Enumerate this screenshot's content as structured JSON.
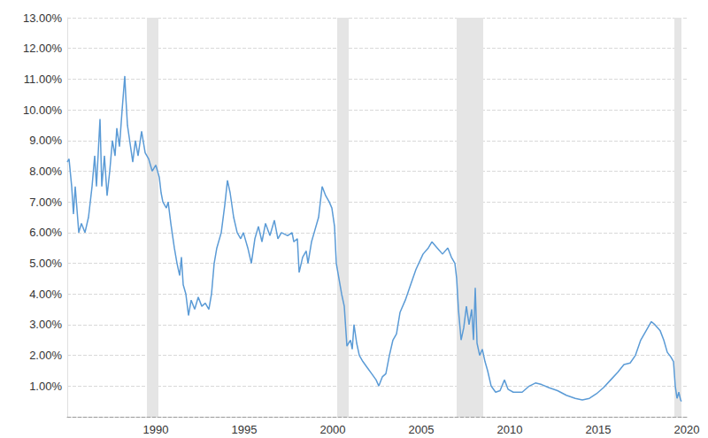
{
  "chart_data": {
    "type": "line",
    "color": "#5b9bd6",
    "grid": true,
    "xlim": [
      1985,
      2020
    ],
    "xticks": [
      1990,
      1995,
      2000,
      2005,
      2010,
      2015,
      2020
    ],
    "ylim": [
      0,
      13
    ],
    "yticks": [
      {
        "value": 1,
        "label": "1.00%"
      },
      {
        "value": 2,
        "label": "2.00%"
      },
      {
        "value": 3,
        "label": "3.00%"
      },
      {
        "value": 4,
        "label": "4.00%"
      },
      {
        "value": 5,
        "label": "5.00%"
      },
      {
        "value": 6,
        "label": "6.00%"
      },
      {
        "value": 7,
        "label": "7.00%"
      },
      {
        "value": 8,
        "label": "8.00%"
      },
      {
        "value": 9,
        "label": "9.00%"
      },
      {
        "value": 10,
        "label": "10.00%"
      },
      {
        "value": 11,
        "label": "11.00%"
      },
      {
        "value": 12,
        "label": "12.00%"
      },
      {
        "value": 13,
        "label": "13.00%"
      }
    ],
    "shaded_ranges": [
      [
        1989.5,
        1990.15
      ],
      [
        2000.25,
        2000.9
      ],
      [
        2007.0,
        2008.5
      ],
      [
        2019.3,
        2019.7
      ]
    ],
    "x": [
      1985.0,
      1985.1,
      1985.25,
      1985.35,
      1985.45,
      1985.65,
      1985.8,
      1986.0,
      1986.2,
      1986.4,
      1986.55,
      1986.65,
      1986.85,
      1986.95,
      1987.1,
      1987.25,
      1987.4,
      1987.55,
      1987.7,
      1987.8,
      1987.95,
      1988.1,
      1988.25,
      1988.3,
      1988.4,
      1988.55,
      1988.7,
      1988.85,
      1989.0,
      1989.2,
      1989.4,
      1989.6,
      1989.8,
      1990.0,
      1990.2,
      1990.3,
      1990.4,
      1990.6,
      1990.7,
      1990.85,
      1991.05,
      1991.2,
      1991.35,
      1991.45,
      1991.55,
      1991.7,
      1991.85,
      1992.0,
      1992.2,
      1992.4,
      1992.6,
      1992.8,
      1993.0,
      1993.15,
      1993.3,
      1993.45,
      1993.7,
      1993.9,
      1994.05,
      1994.2,
      1994.4,
      1994.6,
      1994.8,
      1994.95,
      1995.2,
      1995.4,
      1995.6,
      1995.8,
      1996.0,
      1996.2,
      1996.45,
      1996.7,
      1996.9,
      1997.1,
      1997.45,
      1997.7,
      1997.8,
      1998.0,
      1998.1,
      1998.3,
      1998.5,
      1998.6,
      1998.8,
      1998.95,
      1999.2,
      1999.3,
      1999.4,
      1999.6,
      1999.8,
      1999.95,
      2000.1,
      2000.2,
      2000.35,
      2000.5,
      2000.65,
      2000.8,
      2001.0,
      2001.1,
      2001.2,
      2001.35,
      2001.5,
      2001.7,
      2001.95,
      2002.2,
      2002.45,
      2002.6,
      2002.8,
      2003.0,
      2003.2,
      2003.4,
      2003.6,
      2003.8,
      2004.1,
      2004.4,
      2004.7,
      2005.1,
      2005.4,
      2005.6,
      2005.9,
      2006.2,
      2006.5,
      2006.7,
      2006.9,
      2007.0,
      2007.1,
      2007.25,
      2007.4,
      2007.55,
      2007.7,
      2007.85,
      2007.95,
      2008.05,
      2008.15,
      2008.3,
      2008.45,
      2008.6,
      2008.75,
      2008.95,
      2009.2,
      2009.45,
      2009.7,
      2009.9,
      2010.2,
      2010.7,
      2011.1,
      2011.45,
      2011.8,
      2012.2,
      2012.7,
      2013.2,
      2013.7,
      2014.1,
      2014.5,
      2014.9,
      2015.3,
      2015.7,
      2016.1,
      2016.45,
      2016.8,
      2017.1,
      2017.4,
      2017.7,
      2018.0,
      2018.2,
      2018.5,
      2018.7,
      2018.9,
      2019.1,
      2019.25,
      2019.35,
      2019.45,
      2019.55,
      2019.65,
      2019.7
    ],
    "values": [
      8.3,
      8.4,
      7.5,
      6.6,
      7.5,
      6.0,
      6.3,
      6.0,
      6.5,
      7.5,
      8.5,
      7.5,
      9.7,
      7.5,
      8.5,
      7.2,
      8.0,
      9.0,
      8.5,
      9.4,
      8.8,
      10.0,
      11.1,
      10.5,
      9.5,
      8.9,
      8.3,
      9.0,
      8.5,
      9.3,
      8.6,
      8.4,
      8.0,
      8.2,
      7.8,
      7.3,
      7.0,
      6.8,
      7.0,
      6.3,
      5.5,
      5.0,
      4.6,
      5.2,
      4.3,
      4.0,
      3.3,
      3.8,
      3.5,
      3.9,
      3.6,
      3.7,
      3.5,
      4.0,
      5.0,
      5.5,
      6.0,
      6.9,
      7.7,
      7.3,
      6.5,
      6.0,
      5.8,
      6.0,
      5.5,
      5.0,
      5.8,
      6.2,
      5.7,
      6.3,
      5.9,
      6.4,
      5.8,
      6.0,
      5.9,
      6.0,
      5.7,
      5.8,
      4.7,
      5.2,
      5.4,
      5.0,
      5.7,
      6.0,
      6.5,
      7.0,
      7.5,
      7.2,
      7.0,
      6.8,
      6.2,
      5.0,
      4.5,
      4.0,
      3.6,
      2.3,
      2.5,
      2.2,
      3.0,
      2.4,
      2.0,
      1.8,
      1.6,
      1.4,
      1.2,
      1.0,
      1.3,
      1.4,
      2.0,
      2.5,
      2.7,
      3.4,
      3.8,
      4.3,
      4.8,
      5.3,
      5.5,
      5.7,
      5.5,
      5.3,
      5.5,
      5.2,
      5.0,
      4.5,
      3.5,
      2.5,
      2.9,
      3.6,
      3.0,
      3.5,
      2.5,
      4.2,
      2.4,
      2.0,
      2.2,
      1.8,
      1.5,
      1.0,
      0.8,
      0.85,
      1.2,
      0.9,
      0.8,
      0.8,
      1.0,
      1.1,
      1.05,
      0.95,
      0.85,
      0.7,
      0.6,
      0.55,
      0.6,
      0.75,
      0.95,
      1.2,
      1.45,
      1.7,
      1.75,
      2.0,
      2.5,
      2.8,
      3.1,
      3.0,
      2.8,
      2.5,
      2.1,
      1.95,
      1.8,
      1.0,
      0.6,
      0.8,
      0.55,
      0.5
    ]
  }
}
